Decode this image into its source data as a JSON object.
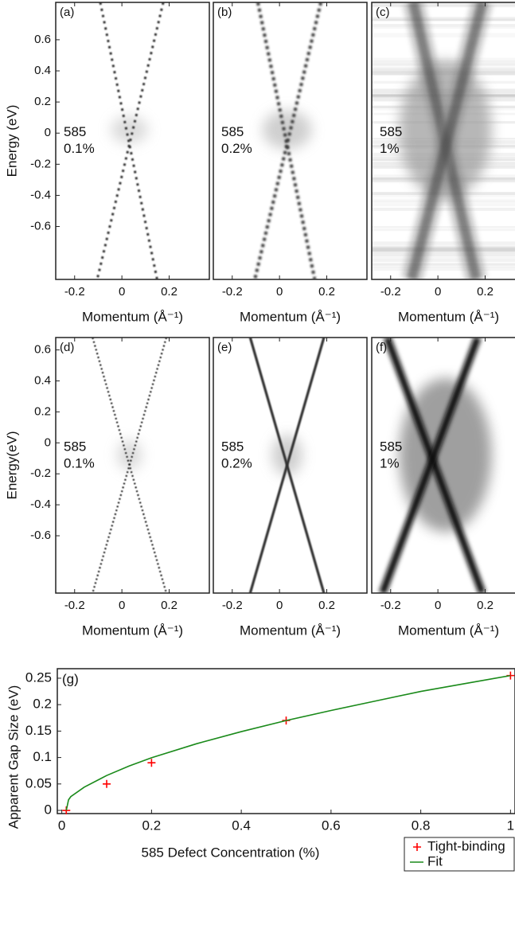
{
  "chart_data": [
    {
      "type": "image",
      "panel_label": "(a)",
      "annotation": [
        "585",
        "0.1%"
      ],
      "ylabel": "Energy (eV)",
      "xlabel": "Momentum (Å⁻¹)",
      "xlim": [
        -0.28,
        0.37
      ],
      "xticks": [
        -0.2,
        0,
        0.2
      ],
      "ylim": [
        -0.94,
        0.84
      ],
      "yticks": [
        -0.6,
        -0.4,
        -0.2,
        0,
        0.2,
        0.4,
        0.6
      ]
    },
    {
      "type": "image",
      "panel_label": "(b)",
      "annotation": [
        "585",
        "0.2%"
      ],
      "xlabel": "Momentum (Å⁻¹)",
      "xlim": [
        -0.28,
        0.37
      ],
      "xticks": [
        -0.2,
        0,
        0.2
      ]
    },
    {
      "type": "image",
      "panel_label": "(c)",
      "annotation": [
        "585",
        "1%"
      ],
      "xlabel": "Momentum (Å⁻¹)",
      "xlim": [
        -0.28,
        0.37
      ],
      "xticks": [
        -0.2,
        0,
        0.2
      ]
    },
    {
      "type": "image",
      "panel_label": "(d)",
      "annotation": [
        "585",
        "0.1%"
      ],
      "ylabel": "Energy(eV)",
      "xlabel": "Momentum (Å⁻¹)",
      "xlim": [
        -0.28,
        0.37
      ],
      "xticks": [
        -0.2,
        0,
        0.2
      ],
      "ylim": [
        -0.97,
        0.68
      ],
      "yticks": [
        -0.6,
        -0.4,
        -0.2,
        0,
        0.2,
        0.4,
        0.6
      ]
    },
    {
      "type": "image",
      "panel_label": "(e)",
      "annotation": [
        "585",
        "0.2%"
      ],
      "xlabel": "Momentum (Å⁻¹)",
      "xlim": [
        -0.28,
        0.37
      ],
      "xticks": [
        -0.2,
        0,
        0.2
      ]
    },
    {
      "type": "image",
      "panel_label": "(f)",
      "annotation": [
        "585",
        "1%"
      ],
      "xlabel": "Momentum (Å⁻¹)",
      "xlim": [
        -0.28,
        0.37
      ],
      "xticks": [
        -0.2,
        0,
        0.2
      ]
    },
    {
      "type": "scatter",
      "panel_label": "(g)",
      "xlabel": "585 Defect Concentration (%)",
      "ylabel": "Apparent Gap Size (eV)",
      "xlim": [
        -0.01,
        1.01
      ],
      "xticks": [
        0,
        0.2,
        0.4,
        0.6,
        0.8,
        1
      ],
      "ylim": [
        -0.006,
        0.268
      ],
      "yticks": [
        0,
        0.05,
        0.1,
        0.15,
        0.2,
        0.25
      ],
      "legend": "lower right",
      "series": [
        {
          "name": "Tight-binding",
          "color": "#ff0000",
          "mode": "markers",
          "marker": "+",
          "x": [
            0.01,
            0.1,
            0.2,
            0.5,
            1
          ],
          "values": [
            0,
            0.05,
            0.09,
            0.17,
            0.255
          ]
        },
        {
          "name": "Fit",
          "color": "#1a8a1a",
          "mode": "line",
          "x": [
            0.01,
            0.015,
            0.02,
            0.05,
            0.1,
            0.15,
            0.2,
            0.3,
            0.4,
            0.5,
            0.6,
            0.7,
            0.8,
            0.9,
            1
          ],
          "values": [
            0,
            0.02,
            0.026,
            0.044,
            0.066,
            0.084,
            0.0995,
            0.126,
            0.149,
            0.17,
            0.189,
            0.207,
            0.225,
            0.24,
            0.255
          ]
        }
      ]
    }
  ]
}
